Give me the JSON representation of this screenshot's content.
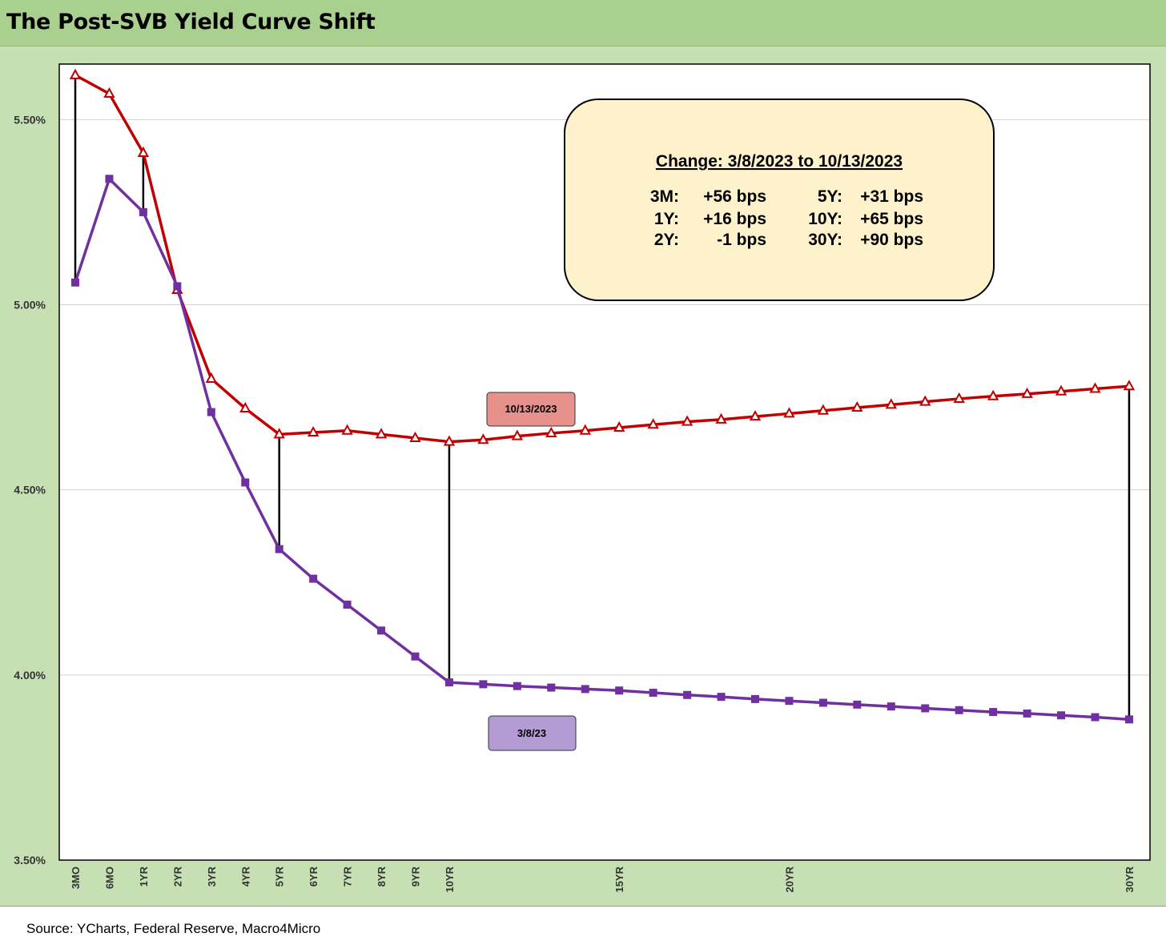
{
  "title": "The Post-SVB Yield Curve Shift",
  "source": "Source: YCharts, Federal Reserve, Macro4Micro",
  "colors": {
    "header_bg": "#a9d08e",
    "plot_bg": "#c6e0b4",
    "series_new": "#c00000",
    "series_old": "#7030a0",
    "label_new_bg": "#e6918b",
    "label_old_bg": "#b39bd3",
    "annotation_bg": "#fdf2cc"
  },
  "annotation": {
    "title": "Change: 3/8/2023 to 10/13/2023",
    "rows": [
      {
        "t1": "3M:",
        "v1": "+56 bps",
        "t2": "5Y:",
        "v2": "+31 bps"
      },
      {
        "t1": "1Y:",
        "v1": "+16 bps",
        "t2": "10Y:",
        "v2": "+65 bps"
      },
      {
        "t1": "2Y:",
        "v1": "-1 bps",
        "t2": "30Y:",
        "v2": "+90 bps"
      }
    ]
  },
  "chart_data": {
    "type": "line",
    "title": "The Post-SVB Yield Curve Shift",
    "ylim": [
      3.5,
      5.65
    ],
    "yticks": [
      "3.50%",
      "4.00%",
      "4.50%",
      "5.00%",
      "5.50%"
    ],
    "grid": true,
    "x_positions": [
      0,
      1,
      2,
      3,
      4,
      5,
      6,
      7,
      8,
      9,
      10,
      11,
      12,
      13,
      14,
      15,
      16,
      17,
      18,
      19,
      20,
      21,
      22,
      23,
      24,
      25,
      26,
      27,
      28,
      29,
      30,
      31
    ],
    "x_tick_labels": [
      {
        "at": 0,
        "label": "3MO"
      },
      {
        "at": 1,
        "label": "6MO"
      },
      {
        "at": 2,
        "label": "1YR"
      },
      {
        "at": 3,
        "label": "2YR"
      },
      {
        "at": 4,
        "label": "3YR"
      },
      {
        "at": 5,
        "label": "4YR"
      },
      {
        "at": 6,
        "label": "5YR"
      },
      {
        "at": 7,
        "label": "6YR"
      },
      {
        "at": 8,
        "label": "7YR"
      },
      {
        "at": 9,
        "label": "8YR"
      },
      {
        "at": 10,
        "label": "9YR"
      },
      {
        "at": 11,
        "label": "10YR"
      },
      {
        "at": 16,
        "label": "15YR"
      },
      {
        "at": 21,
        "label": "20YR"
      },
      {
        "at": 31,
        "label": "30YR"
      }
    ],
    "series": [
      {
        "name": "10/13/2023",
        "values": [
          5.62,
          5.57,
          5.41,
          5.04,
          4.8,
          4.72,
          4.65,
          4.655,
          4.66,
          4.65,
          4.64,
          4.63,
          4.635,
          4.645,
          4.653,
          4.66,
          4.668,
          4.676,
          4.684,
          4.69,
          4.698,
          4.706,
          4.714,
          4.722,
          4.73,
          4.738,
          4.746,
          4.753,
          4.759,
          4.766,
          4.773,
          4.78
        ]
      },
      {
        "name": "3/8/23",
        "values": [
          5.06,
          5.34,
          5.25,
          5.05,
          4.71,
          4.52,
          4.34,
          4.26,
          4.19,
          4.12,
          4.05,
          3.98,
          3.975,
          3.97,
          3.966,
          3.962,
          3.958,
          3.952,
          3.946,
          3.941,
          3.935,
          3.93,
          3.925,
          3.92,
          3.915,
          3.91,
          3.905,
          3.9,
          3.896,
          3.891,
          3.886,
          3.88
        ]
      }
    ],
    "spread_markers_at": [
      0,
      2,
      6,
      11,
      31
    ]
  }
}
